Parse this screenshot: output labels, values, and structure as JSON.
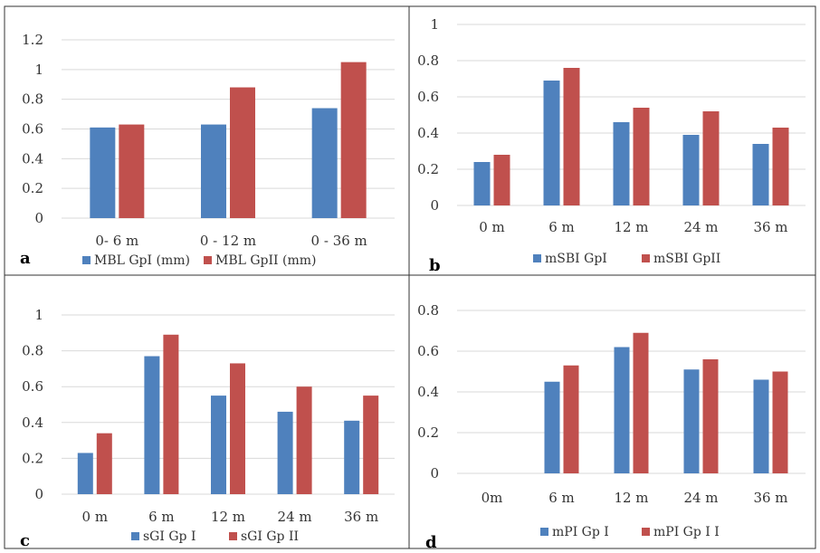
{
  "colors": {
    "gp1": "#4f81bd",
    "gp2": "#c0504d",
    "grid": "#d9d9d9"
  },
  "chart_data": [
    {
      "panel": "a",
      "type": "bar",
      "categories": [
        "0- 6 m",
        "0 - 12 m",
        "0 - 36 m"
      ],
      "series": [
        {
          "name": "MBL GpI (mm)",
          "values": [
            0.61,
            0.63,
            0.74
          ]
        },
        {
          "name": "MBL GpII (mm)",
          "values": [
            0.63,
            0.88,
            1.05
          ]
        }
      ],
      "yticks": [
        "0",
        "0.2",
        "0.4",
        "0.6",
        "0.8",
        "1",
        "1.2"
      ],
      "ylim": [
        0,
        1.2
      ],
      "grid": true,
      "legend": "bottom"
    },
    {
      "panel": "b",
      "type": "bar",
      "categories": [
        "0 m",
        "6 m",
        "12 m",
        "24 m",
        "36 m"
      ],
      "series": [
        {
          "name": "mSBI GpI",
          "values": [
            0.24,
            0.69,
            0.46,
            0.39,
            0.34
          ]
        },
        {
          "name": "mSBI GpII",
          "values": [
            0.28,
            0.76,
            0.54,
            0.52,
            0.43
          ]
        }
      ],
      "yticks": [
        "0",
        "0.2",
        "0.4",
        "0.6",
        "0.8",
        "1"
      ],
      "ylim": [
        0,
        1
      ],
      "grid": true,
      "legend": "bottom"
    },
    {
      "panel": "c",
      "type": "bar",
      "categories": [
        "0 m",
        "6 m",
        "12 m",
        "24 m",
        "36 m"
      ],
      "series": [
        {
          "name": "sGI Gp I",
          "values": [
            0.23,
            0.77,
            0.55,
            0.46,
            0.41
          ]
        },
        {
          "name": "sGI Gp II",
          "values": [
            0.34,
            0.89,
            0.73,
            0.6,
            0.55
          ]
        }
      ],
      "yticks": [
        "0",
        "0.2",
        "0.4",
        "0.6",
        "0.8",
        "1"
      ],
      "ylim": [
        0,
        1
      ],
      "grid": true,
      "legend": "bottom"
    },
    {
      "panel": "d",
      "type": "bar",
      "categories": [
        "0m",
        "6 m",
        "12 m",
        "24 m",
        "36 m"
      ],
      "series": [
        {
          "name": "mPI Gp I",
          "values": [
            0,
            0.45,
            0.62,
            0.51,
            0.46
          ]
        },
        {
          "name": "mPI Gp I I",
          "values": [
            0,
            0.53,
            0.69,
            0.56,
            0.5
          ]
        }
      ],
      "yticks": [
        "0",
        "0.2",
        "0.4",
        "0.6",
        "0.8"
      ],
      "ylim": [
        0,
        0.8
      ],
      "grid": true,
      "legend": "bottom"
    }
  ]
}
